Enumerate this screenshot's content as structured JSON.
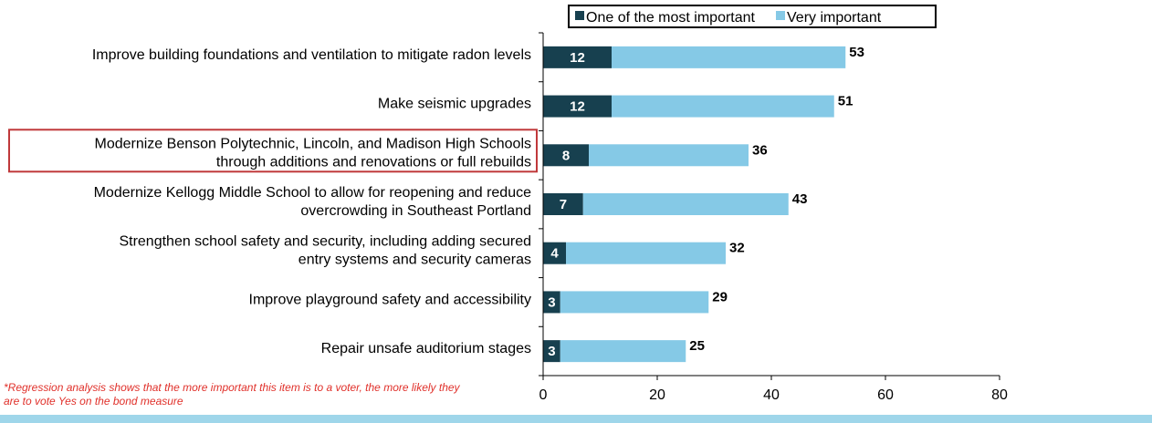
{
  "chart_data": {
    "type": "bar",
    "orientation": "horizontal",
    "stacked": true,
    "categories": [
      [
        "Improve building foundations and ventilation to mitigate radon levels"
      ],
      [
        "Make seismic upgrades"
      ],
      [
        "Modernize Benson Polytechnic, Lincoln, and Madison High Schools",
        "through additions and renovations or full rebuilds"
      ],
      [
        "Modernize Kellogg Middle School to allow for reopening and reduce",
        "overcrowding in Southeast Portland"
      ],
      [
        "Strengthen school safety and security, including adding secured",
        "entry systems and security cameras"
      ],
      [
        "Improve playground safety and accessibility"
      ],
      [
        "Repair unsafe auditorium stages"
      ]
    ],
    "series": [
      {
        "name": "One of the most important",
        "values": [
          12,
          12,
          8,
          7,
          4,
          3,
          3
        ]
      },
      {
        "name": "Very important",
        "values": [
          41,
          39,
          28,
          36,
          28,
          26,
          22
        ]
      }
    ],
    "series_labels": [
      [
        "12",
        "12",
        "8",
        "7",
        "4",
        "3",
        "3"
      ]
    ],
    "totals": [
      "53",
      "51",
      "36",
      "43",
      "32",
      "29",
      "25"
    ],
    "xlim": [
      0,
      80
    ],
    "xticks": [
      "0",
      "20",
      "40",
      "60",
      "80"
    ],
    "legend_position": "top",
    "highlighted_category_index": 2,
    "colors": {
      "series_1": "#17404f",
      "series_2": "#85c9e6",
      "highlight_box": "#c0393b"
    },
    "grid": false
  },
  "footnote": "*Regression analysis shows that the more important this item is to a voter, the more likely they are to vote Yes on the bond measure"
}
